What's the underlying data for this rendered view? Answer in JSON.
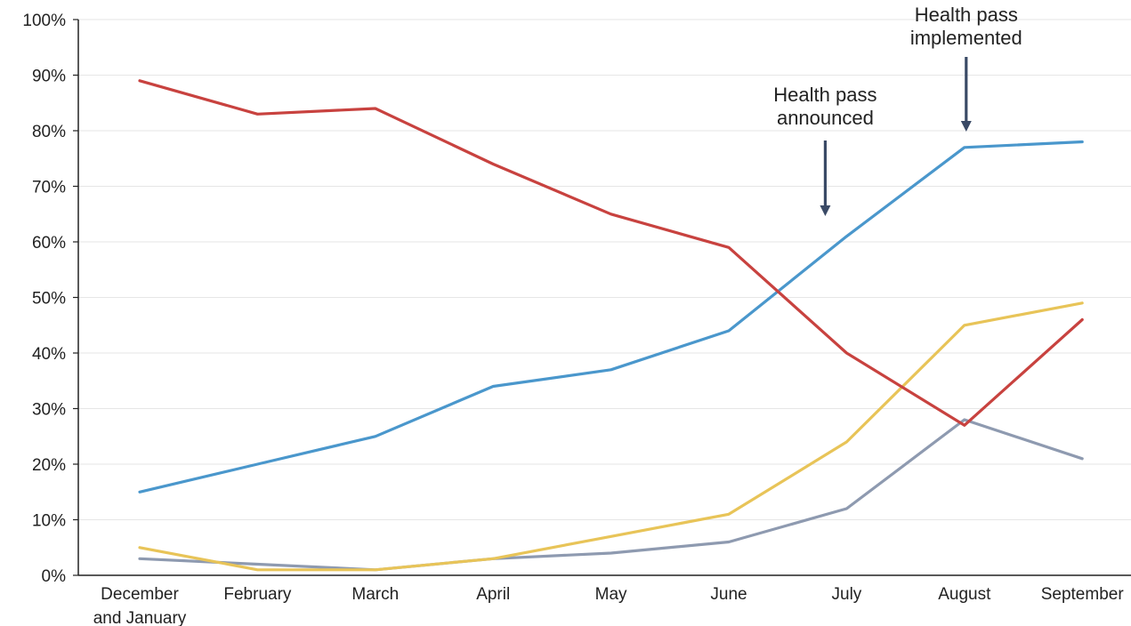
{
  "chart_data": {
    "type": "line",
    "categories": [
      "December\nand January",
      "February",
      "March",
      "April",
      "May",
      "June",
      "July",
      "August",
      "September"
    ],
    "y_tick_labels": [
      "0%",
      "10%",
      "20%",
      "30%",
      "40%",
      "50%",
      "60%",
      "70%",
      "80%",
      "90%",
      "100%"
    ],
    "ylim": [
      0,
      100
    ],
    "grid": "horizontal",
    "series": [
      {
        "color": "#c8423f",
        "values": [
          89,
          83,
          84,
          74,
          65,
          59,
          40,
          27,
          46
        ]
      },
      {
        "color": "#4a97cc",
        "values": [
          15,
          20,
          25,
          34,
          37,
          44,
          61,
          77,
          78
        ]
      },
      {
        "color": "#e8c458",
        "values": [
          5,
          1,
          1,
          3,
          7,
          11,
          24,
          45,
          49
        ]
      },
      {
        "color": "#8e9ab0",
        "values": [
          3,
          2,
          1,
          3,
          4,
          6,
          12,
          28,
          21
        ]
      }
    ],
    "annotations": [
      {
        "text": "Health pass\nannounced",
        "category_index": 6
      },
      {
        "text": "Health pass\nimplemented",
        "category_index": 7
      }
    ]
  },
  "colors": {
    "arrow": "#3a4a66",
    "grid": "#e6e6e6",
    "axis": "#222222"
  }
}
